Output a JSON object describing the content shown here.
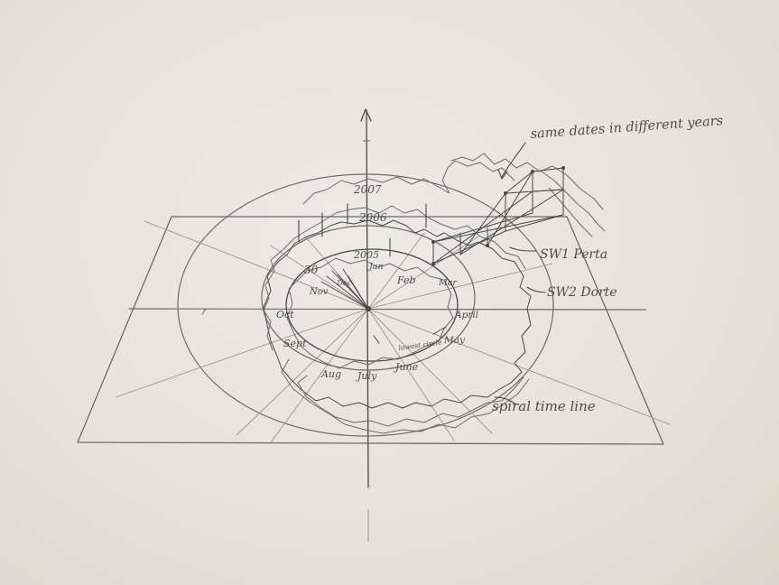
{
  "annotations": {
    "same_dates": "same dates in different years",
    "sw1": "SW1 Perta",
    "sw2": "SW2 Dorte",
    "spiral": "spiral time line",
    "lowest_circle": "lowest circle"
  },
  "years": {
    "y2007": "2007",
    "y2006": "2006",
    "y2005": "2005"
  },
  "day_label": "30",
  "months": {
    "jan": "Jan",
    "feb": "Feb",
    "mar": "Mar",
    "april": "April",
    "may": "May",
    "june": "June",
    "july": "July",
    "aug": "Aug",
    "sept": "Sept",
    "oct": "Oct",
    "nov": "Nov",
    "dec": "Dec"
  }
}
